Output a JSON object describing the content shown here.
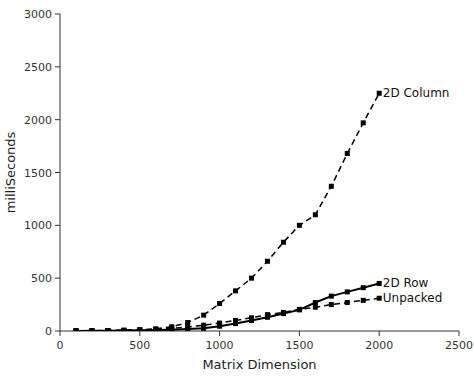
{
  "chart_data": {
    "type": "line",
    "xlabel": "Matrix Dimension",
    "ylabel": "milliSeconds",
    "xlim": [
      0,
      2500
    ],
    "ylim": [
      0,
      3000
    ],
    "xticks": [
      0,
      500,
      1000,
      1500,
      2000,
      2500
    ],
    "yticks": [
      0,
      500,
      1000,
      1500,
      2000,
      2500,
      3000
    ],
    "grid": false,
    "x": [
      100,
      200,
      300,
      400,
      500,
      600,
      700,
      800,
      900,
      1000,
      1100,
      1200,
      1300,
      1400,
      1500,
      1600,
      1700,
      1800,
      1900,
      2000
    ],
    "series": [
      {
        "color": "#000000",
        "line_style": "dashed",
        "marker": "square",
        "values": [
          2,
          3,
          5,
          8,
          12,
          20,
          40,
          80,
          150,
          260,
          380,
          500,
          660,
          840,
          1000,
          1100,
          1370,
          1680,
          1970,
          2250
        ]
      },
      {
        "color": "#000000",
        "line_style": "solid",
        "marker": "square",
        "values": [
          1,
          2,
          3,
          4,
          6,
          9,
          13,
          18,
          25,
          45,
          70,
          100,
          130,
          165,
          200,
          270,
          330,
          370,
          410,
          450
        ]
      },
      {
        "color": "#000000",
        "line_style": "dashed",
        "marker": "square",
        "values": [
          1,
          2,
          4,
          6,
          10,
          16,
          25,
          38,
          55,
          75,
          100,
          125,
          155,
          175,
          205,
          225,
          250,
          270,
          290,
          310
        ]
      }
    ],
    "annotations": [
      {
        "text": "2D Column",
        "x": 2010,
        "y": 2250
      },
      {
        "text": "2D Row",
        "x": 2010,
        "y": 450
      },
      {
        "text": "Unpacked",
        "x": 2010,
        "y": 310
      }
    ]
  }
}
